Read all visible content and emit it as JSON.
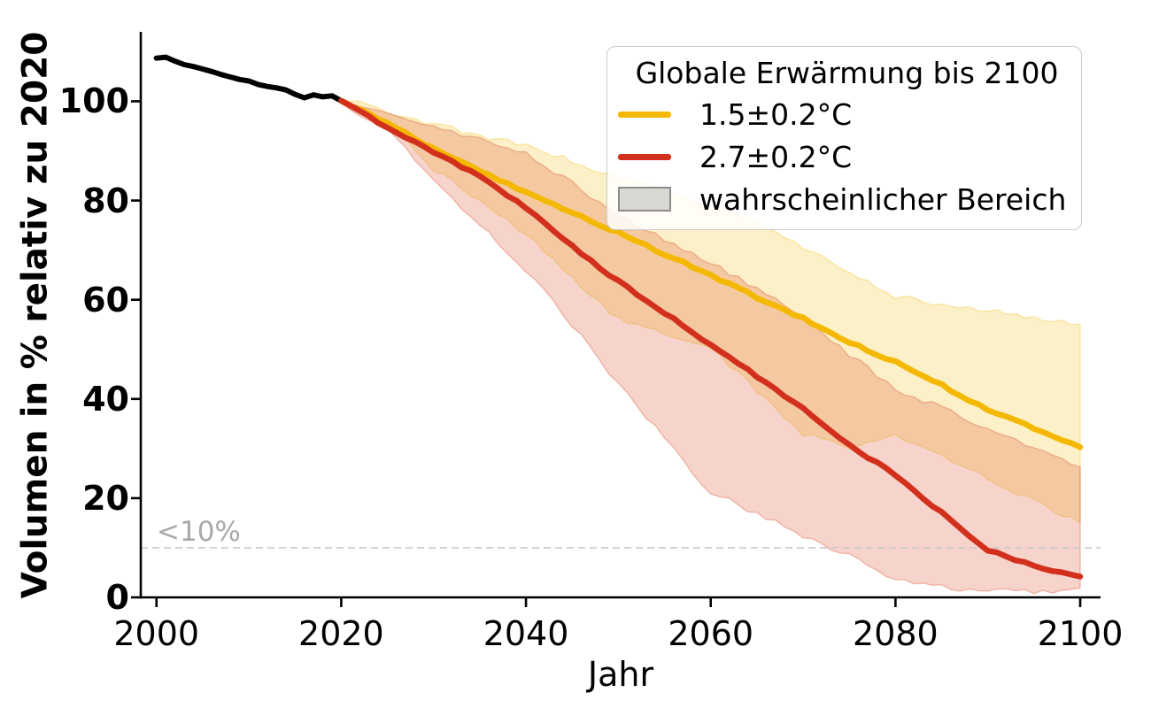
{
  "chart_data": {
    "type": "line",
    "title": "",
    "xlabel": "Jahr",
    "ylabel": "Volumen in % relativ zu 2020",
    "xlim": [
      1998.3,
      2102.2
    ],
    "ylim": [
      0,
      114
    ],
    "grid": false,
    "xticks": [
      2000,
      2020,
      2040,
      2060,
      2080,
      2100
    ],
    "xtick_labels": [
      "2000",
      "2020",
      "2040",
      "2060",
      "2080",
      "2100"
    ],
    "yticks": [
      0,
      20,
      40,
      60,
      80,
      100
    ],
    "ytick_labels": [
      "0",
      "20",
      "40",
      "60",
      "80",
      "100"
    ],
    "hline": {
      "y": 10,
      "label": "<10%",
      "style": "dashed",
      "line_color": "#c9c9c9",
      "label_color": "#a9a9a9"
    },
    "series": [
      {
        "name": "beobachtet-historisch",
        "color": "#000000",
        "width": 6,
        "jitter": 0,
        "x": [
          2000,
          2001,
          2002,
          2003,
          2004,
          2005,
          2006,
          2007,
          2008,
          2009,
          2010,
          2011,
          2012,
          2013,
          2014,
          2015,
          2016,
          2017,
          2018,
          2019,
          2020
        ],
        "y": [
          108.7,
          108.9,
          108.1,
          107.4,
          107.0,
          106.5,
          106.0,
          105.4,
          104.9,
          104.4,
          104.1,
          103.4,
          103.0,
          102.7,
          102.3,
          101.4,
          100.7,
          101.3,
          100.9,
          101.1,
          100.1
        ]
      },
      {
        "name": "szenario-1.5C",
        "color": "#f4b800",
        "width": 6.5,
        "jitter": 0.5,
        "x": [
          2020,
          2025,
          2030,
          2035,
          2040,
          2045,
          2050,
          2055,
          2060,
          2065,
          2070,
          2075,
          2080,
          2085,
          2090,
          2095,
          2100
        ],
        "y": [
          100.1,
          95.5,
          90.5,
          85.8,
          81.8,
          77.5,
          73.5,
          69.2,
          65.0,
          60.5,
          56.2,
          51.5,
          47.4,
          42.8,
          37.8,
          34.2,
          30.3
        ]
      },
      {
        "name": "szenario-2.7C",
        "color": "#d2301c",
        "width": 6.5,
        "jitter": 0.5,
        "x": [
          2020,
          2025,
          2030,
          2035,
          2040,
          2045,
          2050,
          2055,
          2060,
          2065,
          2070,
          2075,
          2080,
          2085,
          2090,
          2095,
          2100
        ],
        "y": [
          100.1,
          94.8,
          89.8,
          84.8,
          78.6,
          70.8,
          63.7,
          57.3,
          51.0,
          44.5,
          38.1,
          30.8,
          24.6,
          17.0,
          9.6,
          6.4,
          4.2
        ]
      }
    ],
    "bands": [
      {
        "name": "wahrscheinlicher-bereich-1.5C",
        "color": "#f3c323",
        "opacity": 0.25,
        "jitter": 1.1,
        "x": [
          2020,
          2025,
          2030,
          2035,
          2040,
          2045,
          2050,
          2055,
          2060,
          2065,
          2070,
          2075,
          2080,
          2085,
          2090,
          2095,
          2100
        ],
        "upper": [
          100.6,
          98.0,
          95.5,
          93.2,
          91.0,
          88.0,
          84.5,
          82.0,
          79.1,
          75.5,
          70.5,
          65.5,
          60.7,
          59.0,
          57.8,
          56.4,
          55.1
        ],
        "lower": [
          99.6,
          96.3,
          86.3,
          80.0,
          73.2,
          64.5,
          56.0,
          53.0,
          50.5,
          41.5,
          33.0,
          30.5,
          32.5,
          28.5,
          24.0,
          19.5,
          15.0
        ]
      },
      {
        "name": "wahrscheinlicher-bereich-2.7C",
        "color": "#db5330",
        "opacity": 0.25,
        "jitter": 1.2,
        "x": [
          2020,
          2025,
          2030,
          2035,
          2040,
          2045,
          2050,
          2055,
          2060,
          2065,
          2070,
          2075,
          2080,
          2085,
          2090,
          2095,
          2100
        ],
        "upper": [
          100.6,
          97.3,
          94.8,
          92.2,
          89.5,
          83.5,
          77.0,
          72.0,
          67.6,
          62.0,
          56.6,
          49.0,
          41.7,
          38.5,
          34.0,
          30.0,
          26.3
        ],
        "lower": [
          99.6,
          94.5,
          83.9,
          75.0,
          66.1,
          55.0,
          42.9,
          32.0,
          21.1,
          17.0,
          12.5,
          8.5,
          3.3,
          2.0,
          1.2,
          1.0,
          1.9
        ]
      }
    ],
    "legend": {
      "title": "Globale Erwärmung bis 2100",
      "position": "upper right",
      "entries": [
        {
          "label": "1.5±0.2°C",
          "type": "line",
          "color": "#f4b800"
        },
        {
          "label": "2.7±0.2°C",
          "type": "line",
          "color": "#d2301c"
        },
        {
          "label": "wahrscheinlicher Bereich",
          "type": "patch",
          "color": "#d9d9d4",
          "border": "#8c8c8c"
        }
      ]
    }
  }
}
